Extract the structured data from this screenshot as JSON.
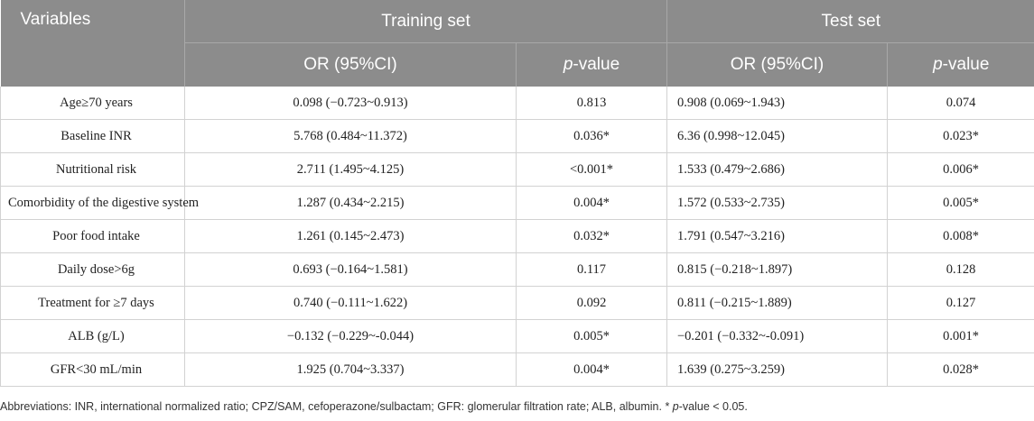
{
  "header": {
    "variables": "Variables",
    "training_set": "Training set",
    "test_set": "Test set",
    "or_ci": "OR (95%CI)",
    "p_italic": "p",
    "p_suffix": "-value"
  },
  "rows": [
    {
      "variable": "Age≥70 years",
      "train_or": "0.098 (−0.723~0.913)",
      "train_p": "0.813",
      "test_or": "0.908 (0.069~1.943)",
      "test_p": "0.074"
    },
    {
      "variable": "Baseline INR",
      "train_or": "5.768 (0.484~11.372)",
      "train_p": "0.036*",
      "test_or": "6.36 (0.998~12.045)",
      "test_p": "0.023*"
    },
    {
      "variable": "Nutritional risk",
      "train_or": "2.711 (1.495~4.125)",
      "train_p": "<0.001*",
      "test_or": "1.533 (0.479~2.686)",
      "test_p": "0.006*"
    },
    {
      "variable": "Comorbidity of the digestive system",
      "train_or": "1.287 (0.434~2.215)",
      "train_p": "0.004*",
      "test_or": "1.572 (0.533~2.735)",
      "test_p": "0.005*"
    },
    {
      "variable": "Poor food intake",
      "train_or": "1.261 (0.145~2.473)",
      "train_p": "0.032*",
      "test_or": "1.791 (0.547~3.216)",
      "test_p": "0.008*"
    },
    {
      "variable": "Daily dose>6g",
      "train_or": "0.693 (−0.164~1.581)",
      "train_p": "0.117",
      "test_or": "0.815 (−0.218~1.897)",
      "test_p": "0.128"
    },
    {
      "variable": "Treatment for ≥7 days",
      "train_or": "0.740 (−0.111~1.622)",
      "train_p": "0.092",
      "test_or": "0.811 (−0.215~1.889)",
      "test_p": "0.127"
    },
    {
      "variable": "ALB (g/L)",
      "train_or": "−0.132 (−0.229~-0.044)",
      "train_p": "0.005*",
      "test_or": "−0.201 (−0.332~-0.091)",
      "test_p": "0.001*"
    },
    {
      "variable": "GFR<30 mL/min",
      "train_or": "1.925 (0.704~3.337)",
      "train_p": "0.004*",
      "test_or": "1.639 (0.275~3.259)",
      "test_p": "0.028*"
    }
  ],
  "footnote": {
    "text": "Abbreviations: INR, international normalized ratio; CPZ/SAM, cefoperazone/sulbactam; GFR: glomerular filtration rate; ALB, albumin. *",
    "p_italic": "p",
    "suffix": "-value < 0.05."
  }
}
